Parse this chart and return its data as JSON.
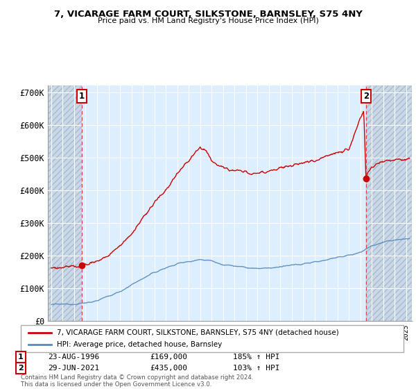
{
  "title1": "7, VICARAGE FARM COURT, SILKSTONE, BARNSLEY, S75 4NY",
  "title2": "Price paid vs. HM Land Registry's House Price Index (HPI)",
  "xlim_start": 1993.7,
  "xlim_end": 2025.5,
  "ylim_min": 0,
  "ylim_max": 720000,
  "sale1_date": 1996.645,
  "sale1_price": 169000,
  "sale1_label": "1",
  "sale2_date": 2021.49,
  "sale2_price": 435000,
  "sale2_label": "2",
  "legend_line1": "7, VICARAGE FARM COURT, SILKSTONE, BARNSLEY, S75 4NY (detached house)",
  "legend_line2": "HPI: Average price, detached house, Barnsley",
  "table_row1": [
    "1",
    "23-AUG-1996",
    "£169,000",
    "185% ↑ HPI"
  ],
  "table_row2": [
    "2",
    "29-JUN-2021",
    "£435,000",
    "103% ↑ HPI"
  ],
  "footnote": "Contains HM Land Registry data © Crown copyright and database right 2024.\nThis data is licensed under the Open Government Licence v3.0.",
  "red_line_color": "#cc0000",
  "blue_line_color": "#5588bb",
  "dot_color": "#cc0000",
  "dashed_line_color": "#dd4444",
  "plot_bg_color": "#ddeeff",
  "hatch_bg_color": "#c8d8e8",
  "ytick_labels": [
    "£0",
    "£100K",
    "£200K",
    "£300K",
    "£400K",
    "£500K",
    "£600K",
    "£700K"
  ],
  "ytick_values": [
    0,
    100000,
    200000,
    300000,
    400000,
    500000,
    600000,
    700000
  ]
}
